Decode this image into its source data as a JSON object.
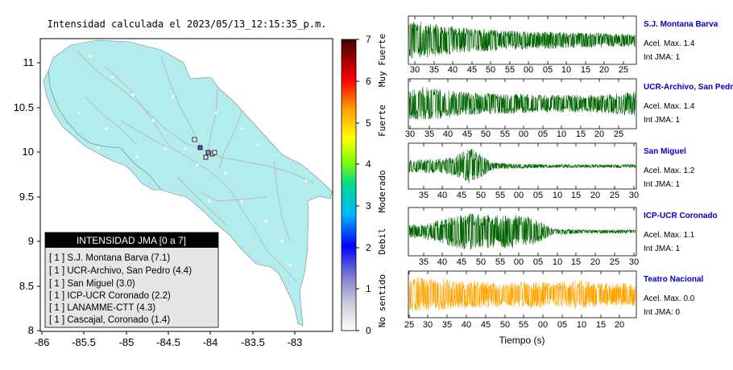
{
  "map": {
    "title": "Intensidad calculada el 2023/05/13_12:15:35_p.m.",
    "x_ticks": [
      "-86",
      "-85.5",
      "-85",
      "-84.5",
      "-84",
      "-83.5",
      "-83"
    ],
    "x_values": [
      -86,
      -85.5,
      -85,
      -84.5,
      -84,
      -83.5,
      -83
    ],
    "y_ticks": [
      "11",
      "10.5",
      "10",
      "9.5",
      "9",
      "8.5",
      "8"
    ],
    "y_values": [
      11,
      10.5,
      10,
      9.5,
      9,
      8.5,
      8
    ],
    "xlim": [
      -86,
      -82.8
    ],
    "ylim": [
      8,
      11.3
    ],
    "land_color": "#b2ecec",
    "legend": {
      "title": "INTENSIDAD JMA [0 a 7]",
      "items": [
        {
          "text": "[ 1 ]  S.J. Montana Barva (7.1)"
        },
        {
          "text": "[ 1 ]  UCR-Archivo, San Pedro (4.4)"
        },
        {
          "text": "[ 1 ]  San Miguel (3.0)"
        },
        {
          "text": "[ 1 ]  ICP-UCR Coronado (2.2)"
        },
        {
          "text": "[ 1 ]  LANAMME-CTT (4.3)"
        },
        {
          "text": "[ 1 ]  Cascajal, Coronado (1.4)"
        }
      ]
    }
  },
  "colorbar": {
    "ticks": [
      "7",
      "6",
      "5",
      "4",
      "3",
      "2",
      "1",
      "0"
    ],
    "labels": [
      "Muy Fuerte",
      "Fuerte",
      "Moderado",
      "Debil",
      "No sentido"
    ]
  },
  "chart_data": [
    {
      "type": "line",
      "name": "S.J. Montana Barva",
      "color": "#006400",
      "x_ticks": [
        "30",
        "35",
        "40",
        "45",
        "50",
        "55",
        "00",
        "05",
        "10",
        "15",
        "20",
        "25"
      ],
      "amplitude_profile": [
        0.9,
        0.8,
        0.65,
        0.55,
        0.5,
        0.45,
        0.4,
        0.4,
        0.35,
        0.35,
        0.3,
        0.3
      ],
      "accel_max": "Acel. Max. 1.4",
      "int_jma": "Int JMA: 1"
    },
    {
      "type": "line",
      "name": "UCR-Archivo, San Pedro",
      "color": "#006400",
      "x_ticks": [
        "30",
        "35",
        "40",
        "45",
        "50",
        "55",
        "00",
        "05",
        "10",
        "15",
        "20",
        "25"
      ],
      "amplitude_profile": [
        0.7,
        0.75,
        0.6,
        0.5,
        0.45,
        0.45,
        0.4,
        0.4,
        0.4,
        0.4,
        0.45,
        0.55
      ],
      "accel_max": "Acel. Max. 1.4",
      "int_jma": "Int JMA: 1"
    },
    {
      "type": "line",
      "name": "San Miguel",
      "color": "#006400",
      "x_ticks": [
        "35",
        "40",
        "45",
        "50",
        "55",
        "00",
        "05",
        "10",
        "15",
        "20",
        "25",
        "30"
      ],
      "amplitude_profile": [
        0.3,
        0.35,
        0.4,
        0.9,
        0.2,
        0.12,
        0.1,
        0.08,
        0.08,
        0.08,
        0.08,
        0.08
      ],
      "accel_max": "Acel. Max. 1.2",
      "int_jma": "Int JMA: 1"
    },
    {
      "type": "line",
      "name": "ICP-UCR Coronado",
      "color": "#006400",
      "x_ticks": [
        "35",
        "40",
        "45",
        "50",
        "55",
        "00",
        "05",
        "10",
        "15",
        "20",
        "25",
        "30"
      ],
      "amplitude_profile": [
        0.3,
        0.4,
        0.7,
        0.85,
        0.75,
        0.8,
        0.65,
        0.15,
        0.1,
        0.08,
        0.08,
        0.08
      ],
      "accel_max": "Acel. Max. 1.1",
      "int_jma": "Int JMA: 1"
    },
    {
      "type": "line",
      "name": "Teatro Nacional",
      "color": "#ffa500",
      "x_ticks": [
        "25",
        "30",
        "35",
        "40",
        "45",
        "50",
        "55",
        "00",
        "05",
        "10",
        "15",
        "20"
      ],
      "amplitude_profile": [
        0.85,
        0.8,
        0.7,
        0.65,
        0.6,
        0.6,
        0.65,
        0.55,
        0.7,
        0.6,
        0.55,
        0.55
      ],
      "accel_max": "Acel. Max. 0.0",
      "int_jma": "Int JMA: 0",
      "xlabel": "Tiempo (s)"
    }
  ]
}
